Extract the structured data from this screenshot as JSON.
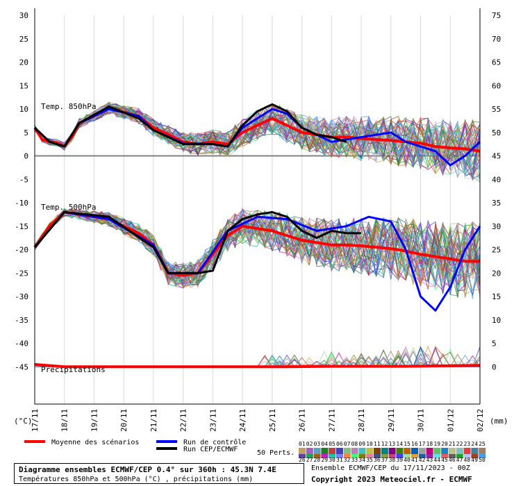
{
  "chart_data": {
    "type": "line",
    "title": "",
    "xlabel": "",
    "left_unit_label": "(°C)",
    "right_unit_label": "(mm)",
    "left_axis": {
      "ylim": [
        -50,
        30
      ],
      "ticks": [
        30,
        25,
        20,
        15,
        10,
        5,
        0,
        -5,
        -10,
        -15,
        -20,
        -25,
        -30,
        -35,
        -40,
        -45
      ]
    },
    "right_axis": {
      "ticks": [
        75,
        70,
        65,
        60,
        55,
        50,
        45,
        40,
        35,
        30,
        25,
        20,
        15,
        10,
        5,
        0
      ]
    },
    "x_ticks": [
      "17/11",
      "18/11",
      "19/11",
      "20/11",
      "21/11",
      "22/11",
      "23/11",
      "24/11",
      "25/11",
      "26/11",
      "27/11",
      "28/11",
      "29/11",
      "30/11",
      "01/12",
      "02/12"
    ],
    "x_range_hours": [
      0,
      360
    ],
    "grid": "vertical gridlines at each day",
    "panel_labels": {
      "t850": "Temp. 850hPa",
      "t500": "Temp. 500hPa",
      "precip": "Précipitations"
    },
    "series": [
      {
        "name": "Moyenne des scénarios",
        "color": "#ff0000",
        "panel": "t850",
        "points": [
          [
            0,
            6
          ],
          [
            6,
            3.5
          ],
          [
            12,
            3
          ],
          [
            18,
            2.8
          ],
          [
            24,
            2
          ],
          [
            30,
            4
          ],
          [
            36,
            7
          ],
          [
            48,
            8.5
          ],
          [
            60,
            10.2
          ],
          [
            72,
            9.3
          ],
          [
            84,
            8.5
          ],
          [
            96,
            6
          ],
          [
            108,
            4.5
          ],
          [
            120,
            3
          ],
          [
            132,
            2.5
          ],
          [
            144,
            3
          ],
          [
            156,
            2.5
          ],
          [
            168,
            5
          ],
          [
            180,
            6.5
          ],
          [
            192,
            8
          ],
          [
            204,
            6.5
          ],
          [
            216,
            5
          ],
          [
            228,
            4.5
          ],
          [
            240,
            4
          ],
          [
            252,
            4
          ],
          [
            264,
            3.7
          ],
          [
            276,
            3.5
          ],
          [
            288,
            3.3
          ],
          [
            300,
            3
          ],
          [
            312,
            2.7
          ],
          [
            324,
            2
          ],
          [
            336,
            1.7
          ],
          [
            348,
            1.5
          ],
          [
            360,
            1
          ]
        ]
      },
      {
        "name": "Run de contrôle",
        "color": "#0000ff",
        "panel": "t850",
        "points": [
          [
            0,
            6
          ],
          [
            12,
            3
          ],
          [
            24,
            2
          ],
          [
            36,
            7
          ],
          [
            60,
            10
          ],
          [
            84,
            8.5
          ],
          [
            96,
            5.5
          ],
          [
            120,
            2.7
          ],
          [
            144,
            2.5
          ],
          [
            156,
            2
          ],
          [
            168,
            6
          ],
          [
            192,
            10
          ],
          [
            204,
            9
          ],
          [
            216,
            6
          ],
          [
            240,
            3
          ],
          [
            264,
            4
          ],
          [
            288,
            5
          ],
          [
            300,
            3
          ],
          [
            312,
            2
          ],
          [
            324,
            1
          ],
          [
            336,
            -2
          ],
          [
            348,
            0
          ],
          [
            360,
            3
          ]
        ]
      },
      {
        "name": "Run CEP/ECMWF",
        "color": "#000000",
        "panel": "t850",
        "points": [
          [
            0,
            6
          ],
          [
            12,
            3
          ],
          [
            24,
            2
          ],
          [
            36,
            7
          ],
          [
            60,
            10.5
          ],
          [
            84,
            8
          ],
          [
            96,
            5.5
          ],
          [
            120,
            2.5
          ],
          [
            144,
            2.5
          ],
          [
            156,
            2
          ],
          [
            168,
            6.5
          ],
          [
            180,
            9.5
          ],
          [
            192,
            11
          ],
          [
            204,
            9.5
          ],
          [
            216,
            6
          ],
          [
            228,
            4.5
          ],
          [
            240,
            4
          ],
          [
            252,
            3
          ]
        ]
      },
      {
        "name": "Moyenne des scénarios",
        "color": "#ff0000",
        "panel": "t500",
        "points": [
          [
            0,
            -19.5
          ],
          [
            12,
            -15
          ],
          [
            24,
            -12
          ],
          [
            36,
            -12.5
          ],
          [
            48,
            -13
          ],
          [
            60,
            -13.5
          ],
          [
            72,
            -15
          ],
          [
            84,
            -16.5
          ],
          [
            96,
            -19
          ],
          [
            108,
            -25
          ],
          [
            120,
            -25.5
          ],
          [
            132,
            -25
          ],
          [
            144,
            -21
          ],
          [
            156,
            -17
          ],
          [
            168,
            -15
          ],
          [
            180,
            -15.5
          ],
          [
            192,
            -16
          ],
          [
            204,
            -17
          ],
          [
            216,
            -18
          ],
          [
            228,
            -18.5
          ],
          [
            240,
            -19
          ],
          [
            252,
            -19
          ],
          [
            264,
            -19.2
          ],
          [
            276,
            -19.5
          ],
          [
            288,
            -19.8
          ],
          [
            300,
            -20.3
          ],
          [
            312,
            -21
          ],
          [
            324,
            -21.5
          ],
          [
            336,
            -22
          ],
          [
            348,
            -22.5
          ],
          [
            360,
            -22.5
          ]
        ]
      },
      {
        "name": "Run de contrôle",
        "color": "#0000ff",
        "panel": "t500",
        "points": [
          [
            0,
            -19.5
          ],
          [
            24,
            -12
          ],
          [
            60,
            -13.5
          ],
          [
            96,
            -19
          ],
          [
            108,
            -25
          ],
          [
            132,
            -25
          ],
          [
            156,
            -16
          ],
          [
            180,
            -13
          ],
          [
            204,
            -13.5
          ],
          [
            228,
            -16
          ],
          [
            252,
            -15
          ],
          [
            270,
            -13
          ],
          [
            288,
            -14
          ],
          [
            300,
            -20
          ],
          [
            312,
            -30
          ],
          [
            324,
            -33
          ],
          [
            336,
            -28
          ],
          [
            348,
            -20
          ],
          [
            360,
            -15
          ]
        ]
      },
      {
        "name": "Run CEP/ECMWF",
        "color": "#000000",
        "panel": "t500",
        "points": [
          [
            0,
            -19.5
          ],
          [
            24,
            -12
          ],
          [
            60,
            -13
          ],
          [
            96,
            -19.5
          ],
          [
            108,
            -25
          ],
          [
            132,
            -25
          ],
          [
            144,
            -24.5
          ],
          [
            156,
            -16
          ],
          [
            168,
            -13.5
          ],
          [
            180,
            -12.5
          ],
          [
            192,
            -12
          ],
          [
            204,
            -13
          ],
          [
            216,
            -16
          ],
          [
            228,
            -17.5
          ],
          [
            240,
            -16
          ],
          [
            252,
            -16.5
          ],
          [
            264,
            -16.5
          ]
        ]
      },
      {
        "name": "Moyenne des scénarios",
        "color": "#ff0000",
        "panel": "precip",
        "points": [
          [
            0,
            0.5
          ],
          [
            24,
            0
          ],
          [
            60,
            0
          ],
          [
            120,
            0
          ],
          [
            168,
            0
          ],
          [
            204,
            0
          ],
          [
            240,
            0.1
          ],
          [
            276,
            0.1
          ],
          [
            300,
            0.1
          ],
          [
            330,
            0.2
          ],
          [
            360,
            0.3
          ]
        ]
      }
    ]
  },
  "legend": {
    "mean_label": "Moyenne des scénarios",
    "control_label": "Run de contrôle",
    "ecmwf_label": "Run CEP/ECMWF",
    "perts_label": "50 Perts.",
    "perts_top": [
      "01",
      "02",
      "03",
      "04",
      "05",
      "06",
      "07",
      "08",
      "09",
      "10",
      "11",
      "12",
      "13",
      "14",
      "15",
      "16",
      "17",
      "18",
      "19",
      "20",
      "21",
      "22",
      "23",
      "24",
      "25"
    ],
    "perts_bottom": [
      "26",
      "27",
      "28",
      "29",
      "30",
      "31",
      "32",
      "33",
      "34",
      "35",
      "36",
      "37",
      "38",
      "39",
      "40",
      "41",
      "42",
      "43",
      "44",
      "45",
      "46",
      "47",
      "48",
      "49",
      "50"
    ],
    "perts_colors": [
      "#c0a060",
      "#a060c0",
      "#60a0c0",
      "#208020",
      "#c04040",
      "#4040c0",
      "#80c080",
      "#c080c0",
      "#40c0c0",
      "#c0c040",
      "#804000",
      "#008080",
      "#800080",
      "#408000",
      "#c06000",
      "#0060c0",
      "#a0a0a0",
      "#c00080",
      "#60c060",
      "#2080c0",
      "#c0c080",
      "#80c0c0",
      "#e04040",
      "#4080a0",
      "#a08060",
      "#6040a0",
      "#20a060",
      "#a06020",
      "#c020c0",
      "#20c0a0",
      "#8080ff",
      "#ff8040",
      "#40ff80",
      "#808000",
      "#e080a0",
      "#405080",
      "#80a040",
      "#c04080",
      "#4040ff",
      "#a0e0a0",
      "#e0a040",
      "#2060a0",
      "#a020a0",
      "#60e0e0",
      "#e06060",
      "#606060",
      "#20a020",
      "#c0c0ff",
      "#a04020",
      "#40a0ff"
    ]
  },
  "info": {
    "line1": "Diagramme ensembles ECMWF/CEP 0.4° sur 360h : 45.3N 7.4E",
    "line2": "Températures 850hPa et 500hPa (°C) , précipitations (mm)",
    "run": "Ensemble ECMWF/CEP du 17/11/2023 - 00Z",
    "copyright": "Copyright 2023 Meteociel.fr - ECMWF"
  }
}
